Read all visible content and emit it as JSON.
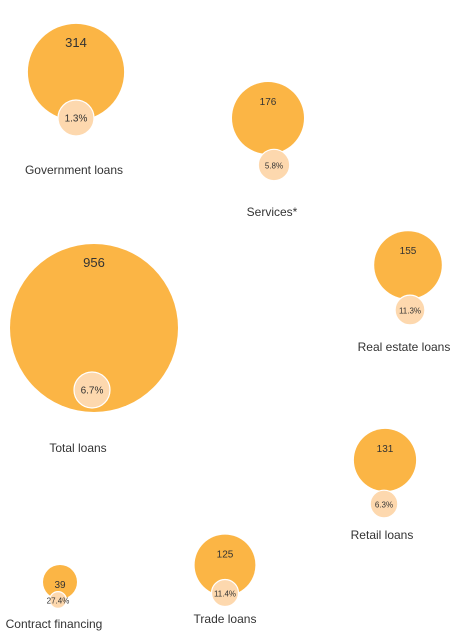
{
  "chart_data": {
    "type": "bubble",
    "title": "",
    "value_unit": "",
    "share_unit": "%",
    "colors": {
      "bubble": "#FBB545",
      "inner": "#FDD8AE",
      "inner_stroke": "#ffffff",
      "text": "#333333"
    },
    "items": [
      {
        "name": "Government loans",
        "value": 314,
        "share": 1.3,
        "value_label": "314",
        "share_label": "1.3%"
      },
      {
        "name": "Services*",
        "value": 176,
        "share": 5.8,
        "value_label": "176",
        "share_label": "5.8%"
      },
      {
        "name": "Real estate loans",
        "value": 155,
        "share": 11.3,
        "value_label": "155",
        "share_label": "11.3%"
      },
      {
        "name": "Total loans",
        "value": 956,
        "share": 6.7,
        "value_label": "956",
        "share_label": "6.7%"
      },
      {
        "name": "Retail loans",
        "value": 131,
        "share": 6.3,
        "value_label": "131",
        "share_label": "6.3%"
      },
      {
        "name": "Contract financing",
        "value": 39,
        "share": 27.4,
        "value_label": "39",
        "share_label": "27.4%"
      },
      {
        "name": "Trade loans",
        "value": 125,
        "share": 11.4,
        "value_label": "125",
        "share_label": "11.4%"
      }
    ]
  }
}
